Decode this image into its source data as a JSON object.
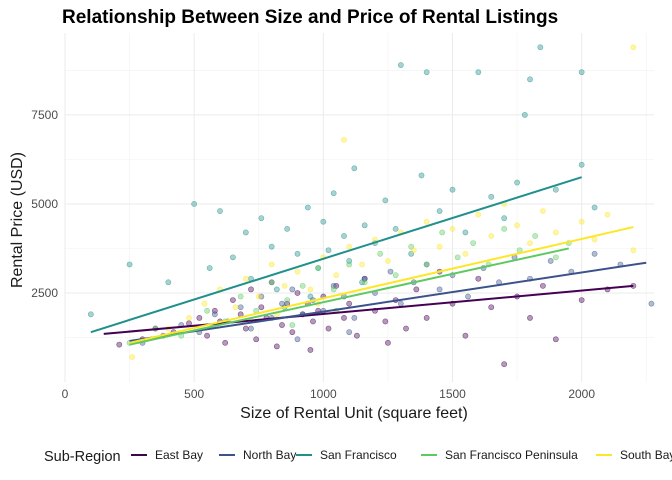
{
  "chart_data": {
    "type": "scatter",
    "title": "Relationship Between Size and Price of Rental Listings",
    "xlabel": "Size of Rental Unit (square feet)",
    "ylabel": "Rental Price (USD)",
    "xlim": [
      0,
      2280
    ],
    "ylim": [
      0,
      9800
    ],
    "xticks": [
      0,
      500,
      1000,
      1500,
      2000
    ],
    "yticks": [
      2500,
      5000,
      7500
    ],
    "grid": true,
    "legend": {
      "title": "Sub-Region",
      "position": "bottom",
      "entries": [
        "East Bay",
        "North Bay",
        "San Francisco",
        "San Francisco Peninsula",
        "South Bay"
      ]
    },
    "series": [
      {
        "name": "East Bay",
        "color": "#440154",
        "trend": {
          "x": [
            150,
            2200
          ],
          "y": [
            1350,
            2700
          ]
        },
        "points": [
          [
            210,
            1050
          ],
          [
            300,
            1200
          ],
          [
            350,
            1500
          ],
          [
            420,
            1400
          ],
          [
            480,
            1650
          ],
          [
            520,
            1800
          ],
          [
            550,
            1300
          ],
          [
            580,
            2000
          ],
          [
            600,
            1700
          ],
          [
            620,
            1100
          ],
          [
            650,
            2300
          ],
          [
            680,
            1900
          ],
          [
            700,
            1500
          ],
          [
            720,
            2600
          ],
          [
            740,
            1200
          ],
          [
            760,
            2100
          ],
          [
            780,
            1800
          ],
          [
            800,
            2800
          ],
          [
            820,
            1000
          ],
          [
            840,
            1600
          ],
          [
            860,
            2200
          ],
          [
            880,
            1400
          ],
          [
            900,
            2500
          ],
          [
            920,
            1900
          ],
          [
            940,
            2200
          ],
          [
            960,
            1700
          ],
          [
            980,
            2000
          ],
          [
            1000,
            2400
          ],
          [
            1020,
            1500
          ],
          [
            1050,
            2700
          ],
          [
            1080,
            1800
          ],
          [
            1100,
            2200
          ],
          [
            1130,
            1300
          ],
          [
            1160,
            2900
          ],
          [
            1200,
            2000
          ],
          [
            1240,
            1700
          ],
          [
            1280,
            2300
          ],
          [
            1320,
            1500
          ],
          [
            1360,
            2600
          ],
          [
            1400,
            1800
          ],
          [
            1450,
            3100
          ],
          [
            1500,
            2200
          ],
          [
            1550,
            1300
          ],
          [
            1600,
            2900
          ],
          [
            1650,
            2100
          ],
          [
            1700,
            500
          ],
          [
            1750,
            2400
          ],
          [
            1800,
            1800
          ],
          [
            1850,
            2700
          ],
          [
            1900,
            1200
          ],
          [
            2000,
            2300
          ],
          [
            2100,
            2600
          ],
          [
            2200,
            2700
          ],
          [
            1250,
            1100
          ],
          [
            950,
            900
          ]
        ]
      },
      {
        "name": "North Bay",
        "color": "#3b528b",
        "trend": {
          "x": [
            250,
            2250
          ],
          "y": [
            1150,
            3350
          ]
        },
        "points": [
          [
            300,
            1100
          ],
          [
            380,
            1300
          ],
          [
            450,
            1600
          ],
          [
            520,
            1400
          ],
          [
            580,
            1900
          ],
          [
            630,
            1700
          ],
          [
            680,
            2100
          ],
          [
            720,
            1500
          ],
          [
            760,
            2400
          ],
          [
            800,
            1800
          ],
          [
            840,
            2200
          ],
          [
            880,
            2600
          ],
          [
            920,
            1900
          ],
          [
            960,
            2300
          ],
          [
            1000,
            2000
          ],
          [
            1040,
            2700
          ],
          [
            1080,
            2400
          ],
          [
            1120,
            1800
          ],
          [
            1160,
            2900
          ],
          [
            1200,
            2500
          ],
          [
            1260,
            3100
          ],
          [
            1300,
            2200
          ],
          [
            1350,
            2800
          ],
          [
            1400,
            3300
          ],
          [
            1450,
            2600
          ],
          [
            1500,
            3000
          ],
          [
            1560,
            2400
          ],
          [
            1620,
            3200
          ],
          [
            1680,
            2800
          ],
          [
            1740,
            3500
          ],
          [
            1800,
            2900
          ],
          [
            1880,
            3400
          ],
          [
            1960,
            3100
          ],
          [
            2050,
            3600
          ],
          [
            2150,
            3300
          ],
          [
            2270,
            2200
          ],
          [
            1100,
            1400
          ],
          [
            900,
            1200
          ]
        ]
      },
      {
        "name": "San Francisco",
        "color": "#21908d",
        "trend": {
          "x": [
            100,
            2000
          ],
          "y": [
            1400,
            5750
          ]
        },
        "points": [
          [
            100,
            1900
          ],
          [
            250,
            3300
          ],
          [
            400,
            2800
          ],
          [
            500,
            5000
          ],
          [
            560,
            3200
          ],
          [
            600,
            4800
          ],
          [
            650,
            3500
          ],
          [
            700,
            4200
          ],
          [
            720,
            2900
          ],
          [
            760,
            4600
          ],
          [
            800,
            3800
          ],
          [
            820,
            2600
          ],
          [
            860,
            4300
          ],
          [
            900,
            3600
          ],
          [
            940,
            4900
          ],
          [
            980,
            3200
          ],
          [
            1000,
            4500
          ],
          [
            1020,
            3700
          ],
          [
            1040,
            5300
          ],
          [
            1080,
            4100
          ],
          [
            1100,
            3400
          ],
          [
            1120,
            6000
          ],
          [
            1160,
            4400
          ],
          [
            1200,
            3900
          ],
          [
            1240,
            5100
          ],
          [
            1280,
            4300
          ],
          [
            1300,
            8900
          ],
          [
            1340,
            3600
          ],
          [
            1380,
            5800
          ],
          [
            1400,
            8700
          ],
          [
            1450,
            4800
          ],
          [
            1500,
            5400
          ],
          [
            1550,
            4200
          ],
          [
            1600,
            8700
          ],
          [
            1650,
            5200
          ],
          [
            1700,
            4600
          ],
          [
            1750,
            5600
          ],
          [
            1780,
            7500
          ],
          [
            1800,
            8500
          ],
          [
            1840,
            9400
          ],
          [
            1900,
            5400
          ],
          [
            2000,
            8700
          ],
          [
            2000,
            6100
          ],
          [
            2050,
            4900
          ],
          [
            1150,
            2800
          ],
          [
            950,
            2400
          ],
          [
            850,
            2100
          ]
        ]
      },
      {
        "name": "San Francisco Peninsula",
        "color": "#5ec962",
        "trend": {
          "x": [
            250,
            1950
          ],
          "y": [
            1050,
            3750
          ]
        },
        "points": [
          [
            250,
            1100
          ],
          [
            350,
            1500
          ],
          [
            450,
            1300
          ],
          [
            550,
            2000
          ],
          [
            620,
            1700
          ],
          [
            680,
            2400
          ],
          [
            740,
            2000
          ],
          [
            800,
            2800
          ],
          [
            860,
            2300
          ],
          [
            920,
            2700
          ],
          [
            980,
            3200
          ],
          [
            1040,
            2600
          ],
          [
            1100,
            3300
          ],
          [
            1160,
            2800
          ],
          [
            1220,
            3600
          ],
          [
            1280,
            3000
          ],
          [
            1340,
            3800
          ],
          [
            1400,
            3300
          ],
          [
            1460,
            4200
          ],
          [
            1520,
            3500
          ],
          [
            1580,
            3900
          ],
          [
            1640,
            3300
          ],
          [
            1700,
            4300
          ],
          [
            1760,
            3700
          ],
          [
            1820,
            4100
          ],
          [
            1900,
            3500
          ],
          [
            1950,
            3900
          ],
          [
            1050,
            2000
          ],
          [
            880,
            1600
          ]
        ]
      },
      {
        "name": "South Bay",
        "color": "#fde725",
        "trend": {
          "x": [
            250,
            2200
          ],
          "y": [
            1100,
            4350
          ]
        },
        "points": [
          [
            260,
            700
          ],
          [
            400,
            1500
          ],
          [
            480,
            1800
          ],
          [
            540,
            2200
          ],
          [
            600,
            2600
          ],
          [
            660,
            2100
          ],
          [
            700,
            2900
          ],
          [
            750,
            2400
          ],
          [
            800,
            3300
          ],
          [
            850,
            2700
          ],
          [
            900,
            3100
          ],
          [
            950,
            2600
          ],
          [
            1000,
            3500
          ],
          [
            1050,
            3000
          ],
          [
            1080,
            6800
          ],
          [
            1100,
            3800
          ],
          [
            1150,
            3300
          ],
          [
            1200,
            4000
          ],
          [
            1250,
            3400
          ],
          [
            1300,
            4200
          ],
          [
            1350,
            3700
          ],
          [
            1400,
            4500
          ],
          [
            1450,
            3800
          ],
          [
            1500,
            4300
          ],
          [
            1550,
            3600
          ],
          [
            1600,
            4700
          ],
          [
            1650,
            4100
          ],
          [
            1700,
            5000
          ],
          [
            1750,
            4400
          ],
          [
            1800,
            3900
          ],
          [
            1850,
            4800
          ],
          [
            1900,
            4200
          ],
          [
            2000,
            4500
          ],
          [
            2050,
            4000
          ],
          [
            2100,
            4700
          ],
          [
            2200,
            9400
          ],
          [
            2200,
            3700
          ],
          [
            980,
            2200
          ],
          [
            820,
            1900
          ]
        ]
      }
    ]
  }
}
